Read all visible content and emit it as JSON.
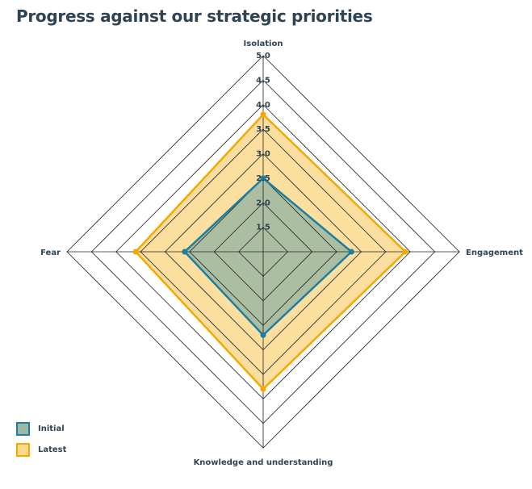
{
  "title": "Progress against our strategic priorities",
  "legend": [
    {
      "name": "Initial",
      "stroke": "#1b7fa3",
      "fill": "#9eb8a1"
    },
    {
      "name": "Latest",
      "stroke": "#f5a800",
      "fill": "#fbd98e"
    }
  ],
  "chart_data": {
    "type": "radar",
    "title": "Progress against our strategic priorities",
    "axes": [
      "Isolation",
      "Engagement",
      "Knowledge and understanding",
      "Fear"
    ],
    "range": [
      1.0,
      5.0
    ],
    "ticks": [
      "1.5",
      "2.0",
      "2.5",
      "3.0",
      "3.5",
      "4.0",
      "4.5",
      "5.0"
    ],
    "tick_values": [
      1.5,
      2.0,
      2.5,
      3.0,
      3.5,
      4.0,
      4.5,
      5.0
    ],
    "grid": true,
    "legend_position": "bottom-left",
    "series": [
      {
        "name": "Latest",
        "values": [
          3.8,
          3.9,
          3.8,
          3.6
        ],
        "stroke": "#f5a800",
        "fill": "#fbd98e"
      },
      {
        "name": "Initial",
        "values": [
          2.5,
          2.8,
          2.7,
          2.6
        ],
        "stroke": "#1b7fa3",
        "fill": "#9eb8a1"
      }
    ]
  }
}
